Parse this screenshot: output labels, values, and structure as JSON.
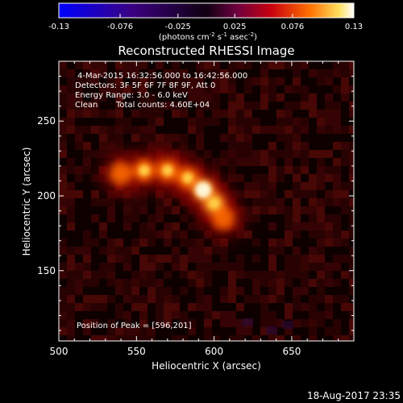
{
  "chart_data": {
    "type": "heatmap",
    "title": "Reconstructed RHESSI Image",
    "xlabel": "Heliocentric X (arcsec)",
    "ylabel": "Heliocentric Y (arcsec)",
    "xlim": [
      500,
      690
    ],
    "ylim": [
      103,
      290
    ],
    "x_ticks": [
      500,
      550,
      600,
      650
    ],
    "y_ticks": [
      150,
      200,
      250
    ],
    "colorbar": {
      "min": -0.13,
      "max": 0.13,
      "tick_labels": [
        "-0.13",
        "-0.076",
        "-0.025",
        "0.025",
        "0.076",
        "0.13"
      ],
      "units_label_parts": [
        "(photons cm",
        "-2",
        " s",
        "-1",
        " asec",
        "-2",
        ")"
      ]
    },
    "annotations": {
      "time_range": "4-Mar-2015 16:32:56.000 to 16:42:56.000",
      "detectors": "Detectors: 3F 5F 6F 7F 8F 9F, Att 0",
      "energy": "Energy Range: 3.0 - 6.0 keV",
      "method": "Clean",
      "counts": "Total counts: 4.60E+04",
      "peak": "Position of Peak = [596,201]"
    },
    "emission_sources": [
      {
        "x": 540,
        "y": 215,
        "peak": 0.09
      },
      {
        "x": 555,
        "y": 217,
        "peak": 0.1
      },
      {
        "x": 570,
        "y": 217,
        "peak": 0.1
      },
      {
        "x": 583,
        "y": 212,
        "peak": 0.11
      },
      {
        "x": 593,
        "y": 204,
        "peak": 0.13
      },
      {
        "x": 600,
        "y": 195,
        "peak": 0.12
      },
      {
        "x": 606,
        "y": 185,
        "peak": 0.09
      }
    ],
    "peak_position": [
      596,
      201
    ]
  },
  "footer": {
    "timestamp": "18-Aug-2017 23:35"
  }
}
